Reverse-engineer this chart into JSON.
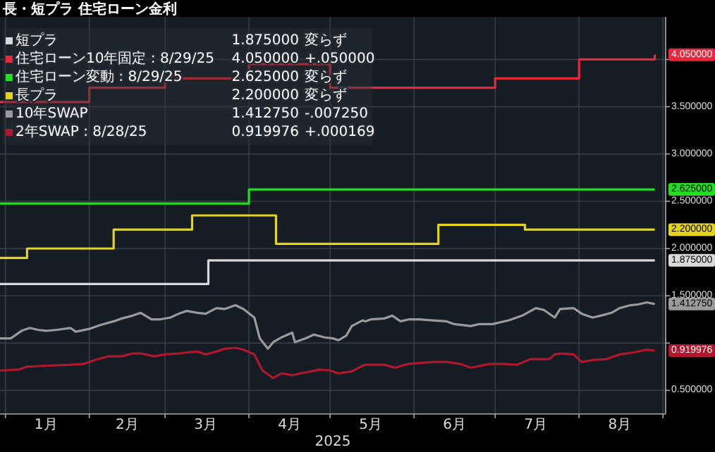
{
  "chart_data": {
    "type": "line",
    "title": "長・短プラ 住宅ローン金利",
    "xlabel": "2025",
    "xlim": [
      "2024-12-30",
      "2025-09-02"
    ],
    "xticks": [
      {
        "value": "2025-01-01",
        "label": null
      },
      {
        "value": "2025-01-16",
        "label": "1月"
      },
      {
        "value": "2025-02-01",
        "label": null
      },
      {
        "value": "2025-02-15",
        "label": "2月"
      },
      {
        "value": "2025-03-01",
        "label": null
      },
      {
        "value": "2025-03-16",
        "label": "3月"
      },
      {
        "value": "2025-04-01",
        "label": null
      },
      {
        "value": "2025-04-16",
        "label": "4月"
      },
      {
        "value": "2025-05-01",
        "label": null
      },
      {
        "value": "2025-05-16",
        "label": "5月"
      },
      {
        "value": "2025-06-01",
        "label": null
      },
      {
        "value": "2025-06-16",
        "label": "6月"
      },
      {
        "value": "2025-07-01",
        "label": null
      },
      {
        "value": "2025-07-16",
        "label": "7月"
      },
      {
        "value": "2025-08-01",
        "label": null
      },
      {
        "value": "2025-08-16",
        "label": "8月"
      },
      {
        "value": "2025-09-01",
        "label": null
      }
    ],
    "ylim": [
      0.25,
      4.45
    ],
    "yticks": [
      {
        "value": 0.5,
        "label": "0.500000"
      },
      {
        "value": 1,
        "label": null
      },
      {
        "value": 1.5,
        "label": "1.500000"
      },
      {
        "value": 2,
        "label": "2.000000"
      },
      {
        "value": 2.5,
        "label": "2.500000"
      },
      {
        "value": 3,
        "label": "3.000000"
      },
      {
        "value": 3.5,
        "label": "3.500000"
      },
      {
        "value": 4,
        "label": null
      }
    ],
    "grid": true,
    "legend": "top left",
    "series": [
      {
        "name": "短プラ",
        "type": "step",
        "color": "#d9d9d9",
        "x": [
          "2024-12-30",
          "2025-03-17",
          "2025-08-29"
        ],
        "values": [
          1.625,
          1.875,
          1.875
        ],
        "value_labels": [
          null,
          null,
          "1.875000"
        ]
      },
      {
        "name": "住宅ローン10年固定 : 8/29/25",
        "type": "step",
        "color": "#e8283c",
        "x": [
          "2024-12-30",
          "2025-02-01",
          "2025-03-01",
          "2025-04-01",
          "2025-05-01",
          "2025-07-01",
          "2025-08-01",
          "2025-08-29"
        ],
        "values": [
          3.55,
          3.7,
          3.8,
          3.95,
          3.7,
          3.8,
          4.0,
          4.05
        ],
        "value_labels": [
          null,
          null,
          null,
          null,
          null,
          null,
          null,
          "4.050000"
        ]
      },
      {
        "name": "住宅ローン変動 : 8/29/25",
        "type": "step",
        "color": "#22dd22",
        "x": [
          "2024-12-30",
          "2025-04-01",
          "2025-08-29"
        ],
        "values": [
          2.475,
          2.625,
          2.625
        ],
        "value_labels": [
          null,
          null,
          "2.625000"
        ]
      },
      {
        "name": "長プラ",
        "type": "step",
        "color": "#e3d21e",
        "x": [
          "2024-12-30",
          "2025-01-09",
          "2025-02-10",
          "2025-03-11",
          "2025-04-11",
          "2025-06-10",
          "2025-07-12",
          "2025-08-29"
        ],
        "values": [
          1.9,
          2.0,
          2.2,
          2.35,
          2.05,
          2.25,
          2.2,
          2.2
        ],
        "value_labels": [
          null,
          null,
          null,
          null,
          null,
          null,
          null,
          "2.200000"
        ]
      },
      {
        "name": "10年SWAP",
        "type": "line",
        "color": "#9a9a9a",
        "x": [
          "2024-12-30",
          "2025-01-03",
          "2025-01-07",
          "2025-01-10",
          "2025-01-13",
          "2025-01-16",
          "2025-01-20",
          "2025-01-25",
          "2025-01-27",
          "2025-02-01",
          "2025-02-05",
          "2025-02-10",
          "2025-02-13",
          "2025-02-17",
          "2025-02-20",
          "2025-02-24",
          "2025-02-27",
          "2025-03-03",
          "2025-03-06",
          "2025-03-09",
          "2025-03-13",
          "2025-03-16",
          "2025-03-20",
          "2025-03-23",
          "2025-03-27",
          "2025-03-30",
          "2025-04-03",
          "2025-04-05",
          "2025-04-08",
          "2025-04-10",
          "2025-04-13",
          "2025-04-17",
          "2025-04-18",
          "2025-04-22",
          "2025-04-25",
          "2025-04-29",
          "2025-05-02",
          "2025-05-04",
          "2025-05-07",
          "2025-05-09",
          "2025-05-13",
          "2025-05-14",
          "2025-05-16",
          "2025-05-21",
          "2025-05-24",
          "2025-05-27",
          "2025-05-30",
          "2025-06-03",
          "2025-06-08",
          "2025-06-13",
          "2025-06-16",
          "2025-06-22",
          "2025-06-25",
          "2025-06-30",
          "2025-07-06",
          "2025-07-11",
          "2025-07-16",
          "2025-07-19",
          "2025-07-23",
          "2025-07-25",
          "2025-07-30",
          "2025-08-02",
          "2025-08-06",
          "2025-08-09",
          "2025-08-13",
          "2025-08-16",
          "2025-08-20",
          "2025-08-23",
          "2025-08-26",
          "2025-08-29"
        ],
        "values": [
          1.05,
          1.05,
          1.13,
          1.16,
          1.14,
          1.13,
          1.14,
          1.16,
          1.12,
          1.15,
          1.19,
          1.23,
          1.26,
          1.29,
          1.32,
          1.25,
          1.25,
          1.27,
          1.31,
          1.34,
          1.32,
          1.31,
          1.37,
          1.36,
          1.4,
          1.36,
          1.27,
          1.05,
          0.94,
          1.01,
          1.06,
          1.11,
          1.01,
          1.05,
          1.09,
          1.06,
          1.05,
          1.03,
          1.08,
          1.18,
          1.24,
          1.23,
          1.25,
          1.26,
          1.29,
          1.23,
          1.25,
          1.25,
          1.24,
          1.23,
          1.2,
          1.18,
          1.2,
          1.2,
          1.24,
          1.29,
          1.37,
          1.35,
          1.27,
          1.36,
          1.37,
          1.31,
          1.27,
          1.29,
          1.32,
          1.37,
          1.4,
          1.41,
          1.43,
          1.41275
        ],
        "value_labels": [
          null,
          null,
          null,
          null,
          null,
          null,
          null,
          null,
          null,
          null,
          null,
          null,
          null,
          null,
          null,
          null,
          null,
          null,
          null,
          null,
          null,
          null,
          null,
          null,
          null,
          null,
          null,
          null,
          null,
          null,
          null,
          null,
          null,
          null,
          null,
          null,
          null,
          null,
          null,
          null,
          null,
          null,
          null,
          null,
          null,
          null,
          null,
          null,
          null,
          null,
          null,
          null,
          null,
          null,
          null,
          null,
          null,
          null,
          null,
          null,
          null,
          null,
          null,
          null,
          null,
          null,
          null,
          null,
          null,
          "1.412750"
        ]
      },
      {
        "name": "2年SWAP : 8/28/25",
        "type": "line",
        "color": "#b0172e",
        "x": [
          "2024-12-30",
          "2025-01-06",
          "2025-01-09",
          "2025-01-16",
          "2025-01-25",
          "2025-01-30",
          "2025-02-03",
          "2025-02-08",
          "2025-02-13",
          "2025-02-17",
          "2025-02-20",
          "2025-02-25",
          "2025-03-01",
          "2025-03-06",
          "2025-03-09",
          "2025-03-13",
          "2025-03-16",
          "2025-03-20",
          "2025-03-23",
          "2025-03-27",
          "2025-03-30",
          "2025-04-03",
          "2025-04-06",
          "2025-04-10",
          "2025-04-13",
          "2025-04-17",
          "2025-04-20",
          "2025-04-24",
          "2025-04-27",
          "2025-05-01",
          "2025-05-04",
          "2025-05-09",
          "2025-05-13",
          "2025-05-14",
          "2025-05-16",
          "2025-05-21",
          "2025-05-25",
          "2025-05-30",
          "2025-06-08",
          "2025-06-13",
          "2025-06-18",
          "2025-06-22",
          "2025-06-29",
          "2025-07-04",
          "2025-07-09",
          "2025-07-14",
          "2025-07-21",
          "2025-07-23",
          "2025-07-25",
          "2025-07-30",
          "2025-08-02",
          "2025-08-06",
          "2025-08-11",
          "2025-08-16",
          "2025-08-21",
          "2025-08-26",
          "2025-08-29"
        ],
        "values": [
          0.71,
          0.72,
          0.75,
          0.76,
          0.77,
          0.78,
          0.82,
          0.86,
          0.86,
          0.89,
          0.89,
          0.86,
          0.88,
          0.89,
          0.9,
          0.91,
          0.88,
          0.91,
          0.94,
          0.95,
          0.93,
          0.88,
          0.71,
          0.63,
          0.68,
          0.66,
          0.68,
          0.7,
          0.72,
          0.71,
          0.68,
          0.7,
          0.76,
          0.77,
          0.77,
          0.77,
          0.74,
          0.78,
          0.8,
          0.8,
          0.78,
          0.74,
          0.78,
          0.78,
          0.77,
          0.83,
          0.83,
          0.88,
          0.89,
          0.88,
          0.8,
          0.82,
          0.83,
          0.88,
          0.9,
          0.93,
          0.919976
        ],
        "value_labels": [
          null,
          null,
          null,
          null,
          null,
          null,
          null,
          null,
          null,
          null,
          null,
          null,
          null,
          null,
          null,
          null,
          null,
          null,
          null,
          null,
          null,
          null,
          null,
          null,
          null,
          null,
          null,
          null,
          null,
          null,
          null,
          null,
          null,
          null,
          null,
          null,
          null,
          null,
          null,
          null,
          null,
          null,
          null,
          null,
          null,
          null,
          null,
          null,
          null,
          null,
          null,
          null,
          null,
          null,
          null,
          null,
          "0.919976"
        ]
      }
    ],
    "annotations": [
      "1.875000",
      "変らず",
      "4.050000",
      "+.050000",
      "2.625000",
      "変らず",
      "2.200000",
      "変らず",
      "1.412750",
      "-.007250",
      "0.919976",
      "+.000169"
    ]
  }
}
